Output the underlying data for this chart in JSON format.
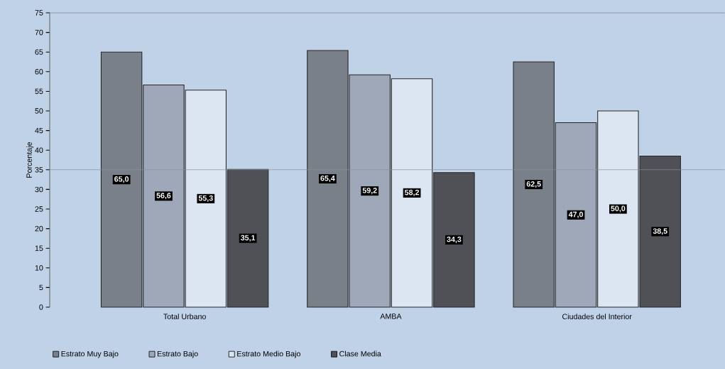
{
  "chart_data": {
    "type": "bar",
    "ylabel": "Porcentaje",
    "categories": [
      "Total Urbano",
      "AMBA",
      "Ciudades del Interior"
    ],
    "series": [
      {
        "name": "Estrato Muy Bajo",
        "color": "#7a808a",
        "values": [
          65.0,
          65.4,
          62.5
        ],
        "value_labels": [
          "65,0",
          "65,4",
          "62,5"
        ]
      },
      {
        "name": "Estrato Bajo",
        "color": "#9ea8b8",
        "values": [
          56.6,
          59.2,
          47.0
        ],
        "value_labels": [
          "56,6",
          "59,2",
          "47,0"
        ]
      },
      {
        "name": "Estrato Medio Bajo",
        "color": "#dce6f3",
        "values": [
          55.3,
          58.2,
          50.0
        ],
        "value_labels": [
          "55,3",
          "58,2",
          "50,0"
        ]
      },
      {
        "name": "Clase Media",
        "color": "#505157",
        "values": [
          35.1,
          34.3,
          38.5
        ],
        "value_labels": [
          "35,1",
          "34,3",
          "38,5"
        ]
      }
    ],
    "ylim": [
      0,
      75
    ],
    "yticks": [
      0,
      5,
      10,
      15,
      20,
      25,
      30,
      35,
      40,
      45,
      50,
      55,
      60,
      65,
      70,
      75
    ],
    "ref_lines": [
      {
        "axis": "y",
        "value": 35,
        "color": "#8a8f96"
      }
    ],
    "legend": "bottom left",
    "grid": false
  }
}
